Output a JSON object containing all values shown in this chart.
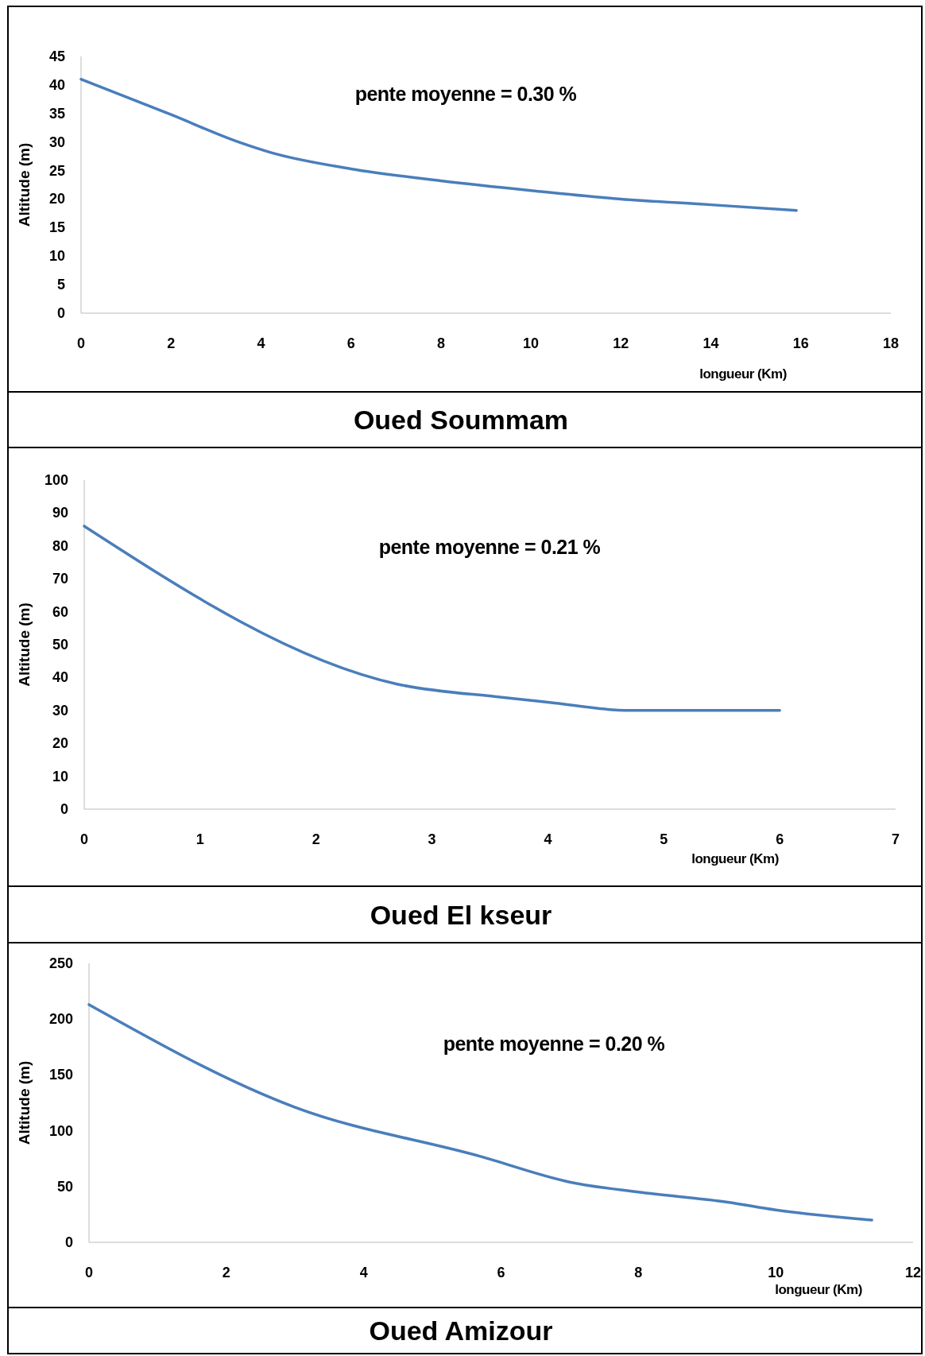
{
  "chart_data": [
    {
      "type": "line",
      "title": "Oued Soummam",
      "xlabel": "longueur (Km)",
      "ylabel": "Altitude (m)",
      "annotations": [
        "pente moyenne = 0.30 %"
      ],
      "xlim": [
        0,
        18
      ],
      "xticks": [
        0,
        2,
        4,
        6,
        8,
        10,
        12,
        14,
        16,
        18
      ],
      "ylim": [
        0,
        45
      ],
      "yticks": [
        0,
        5,
        10,
        15,
        20,
        25,
        30,
        35,
        40,
        45
      ],
      "series": [
        {
          "color": "#4a7ebb",
          "x": [
            0,
            2,
            3.5,
            4.2,
            6,
            8,
            10,
            12,
            14,
            15.9
          ],
          "values": [
            41,
            34.8,
            30,
            28.2,
            25.3,
            23.2,
            21.5,
            20,
            19,
            18
          ]
        }
      ]
    },
    {
      "type": "line",
      "title": "Oued El kseur",
      "xlabel": "longueur (Km)",
      "ylabel": "Altitude (m)",
      "annotations": [
        "pente moyenne = 0.21 %"
      ],
      "xlim": [
        0,
        7
      ],
      "xticks": [
        0,
        1,
        2,
        3,
        4,
        5,
        6,
        7
      ],
      "ylim": [
        0,
        100
      ],
      "yticks": [
        0,
        10,
        20,
        30,
        40,
        50,
        60,
        70,
        80,
        90,
        100
      ],
      "series": [
        {
          "color": "#4a7ebb",
          "x": [
            0,
            2.7,
            3.6,
            4,
            4.7,
            6
          ],
          "values": [
            86,
            38,
            34,
            32.5,
            30,
            30
          ]
        }
      ]
    },
    {
      "type": "line",
      "title": "Oued Amizour",
      "xlabel": "longueur (Km)",
      "ylabel": "Altitude (m)",
      "annotations": [
        "pente moyenne = 0.20 %"
      ],
      "xlim": [
        0,
        12
      ],
      "xticks": [
        0,
        2,
        4,
        6,
        8,
        10,
        12
      ],
      "ylim": [
        0,
        250
      ],
      "yticks": [
        0,
        50,
        100,
        150,
        200,
        250
      ],
      "series": [
        {
          "color": "#4a7ebb",
          "x": [
            0,
            3,
            5.7,
            7,
            8,
            9.3,
            10,
            11.4
          ],
          "values": [
            213,
            121,
            77,
            54,
            45,
            36,
            29,
            20
          ]
        }
      ]
    }
  ]
}
